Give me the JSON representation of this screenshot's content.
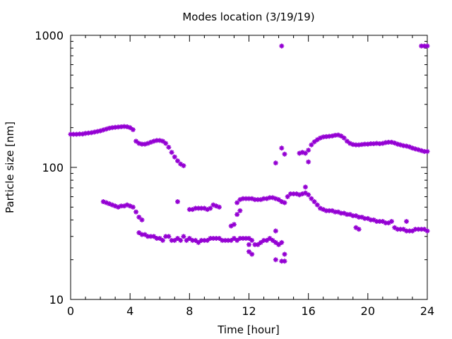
{
  "chart_data": {
    "type": "scatter",
    "title": "Modes location (3/19/19)",
    "xlabel": "Time [hour]",
    "ylabel": "Particle size [nm]",
    "xlim": [
      0,
      24
    ],
    "ylim": [
      10,
      1000
    ],
    "yscale": "log",
    "grid": false,
    "legend": "none",
    "marker_color": "#9400d3",
    "marker_shape": "star",
    "x_ticks": [
      0,
      4,
      8,
      12,
      16,
      20,
      24
    ],
    "x_tick_labels": [
      "0",
      "4",
      "8",
      "12",
      "16",
      "20",
      "24"
    ],
    "y_ticks": [
      10,
      100,
      1000
    ],
    "y_tick_labels": [
      "10",
      "100",
      "1000"
    ],
    "series": [
      {
        "values": [
          [
            0.0,
            178
          ],
          [
            0.2,
            178
          ],
          [
            0.4,
            178
          ],
          [
            0.6,
            179
          ],
          [
            0.8,
            179
          ],
          [
            1.0,
            181
          ],
          [
            1.2,
            182
          ],
          [
            1.4,
            183
          ],
          [
            1.6,
            185
          ],
          [
            1.8,
            187
          ],
          [
            2.0,
            189
          ],
          [
            2.2,
            192
          ],
          [
            2.4,
            195
          ],
          [
            2.6,
            198
          ],
          [
            2.8,
            200
          ],
          [
            3.0,
            201
          ],
          [
            3.2,
            202
          ],
          [
            3.4,
            203
          ],
          [
            3.6,
            204
          ],
          [
            3.8,
            203
          ],
          [
            4.0,
            200
          ],
          [
            4.2,
            193
          ],
          [
            4.4,
            158
          ],
          [
            4.6,
            152
          ],
          [
            4.8,
            150
          ],
          [
            5.0,
            150
          ],
          [
            5.2,
            152
          ],
          [
            5.4,
            155
          ],
          [
            5.6,
            158
          ],
          [
            5.8,
            160
          ],
          [
            6.0,
            160
          ],
          [
            6.2,
            158
          ],
          [
            6.4,
            152
          ],
          [
            6.6,
            142
          ],
          [
            6.8,
            130
          ],
          [
            7.0,
            120
          ],
          [
            7.2,
            112
          ],
          [
            7.4,
            106
          ],
          [
            7.6,
            103
          ],
          [
            14.2,
            140
          ],
          [
            14.4,
            126
          ],
          [
            15.4,
            128
          ],
          [
            15.6,
            130
          ],
          [
            15.8,
            128
          ],
          [
            16.0,
            110
          ],
          [
            16.0,
            135
          ],
          [
            16.2,
            148
          ],
          [
            16.4,
            156
          ],
          [
            16.6,
            162
          ],
          [
            16.8,
            167
          ],
          [
            17.0,
            170
          ],
          [
            17.2,
            171
          ],
          [
            17.4,
            172
          ],
          [
            17.6,
            173
          ],
          [
            17.8,
            175
          ],
          [
            18.0,
            176
          ],
          [
            18.2,
            173
          ],
          [
            18.4,
            167
          ],
          [
            18.6,
            158
          ],
          [
            18.8,
            152
          ],
          [
            19.0,
            149
          ],
          [
            19.2,
            148
          ],
          [
            19.4,
            148
          ],
          [
            19.6,
            149
          ],
          [
            19.8,
            150
          ],
          [
            20.0,
            150
          ],
          [
            20.2,
            151
          ],
          [
            20.4,
            151
          ],
          [
            20.6,
            152
          ],
          [
            20.8,
            151
          ],
          [
            21.0,
            152
          ],
          [
            21.2,
            154
          ],
          [
            21.4,
            155
          ],
          [
            21.6,
            155
          ],
          [
            21.8,
            153
          ],
          [
            22.0,
            150
          ],
          [
            22.2,
            148
          ],
          [
            22.4,
            146
          ],
          [
            22.6,
            145
          ],
          [
            22.8,
            143
          ],
          [
            23.0,
            140
          ],
          [
            23.2,
            138
          ],
          [
            23.4,
            136
          ],
          [
            23.6,
            134
          ],
          [
            23.8,
            132
          ],
          [
            24.0,
            132
          ],
          [
            14.2,
            830
          ],
          [
            23.6,
            830
          ],
          [
            23.8,
            830
          ],
          [
            24.0,
            830
          ],
          [
            13.8,
            108
          ]
        ]
      },
      {
        "values": [
          [
            2.2,
            55
          ],
          [
            2.4,
            54
          ],
          [
            2.6,
            53
          ],
          [
            2.8,
            52
          ],
          [
            3.0,
            51
          ],
          [
            3.2,
            50
          ],
          [
            3.4,
            51
          ],
          [
            3.6,
            51
          ],
          [
            3.8,
            52
          ],
          [
            4.0,
            51
          ],
          [
            4.2,
            50
          ],
          [
            4.4,
            46
          ],
          [
            4.6,
            42
          ],
          [
            4.8,
            40
          ],
          [
            7.2,
            55
          ],
          [
            8.0,
            48
          ],
          [
            8.2,
            48
          ],
          [
            8.4,
            49
          ],
          [
            8.6,
            49
          ],
          [
            8.8,
            49
          ],
          [
            9.0,
            49
          ],
          [
            9.2,
            48
          ],
          [
            9.4,
            49
          ],
          [
            9.6,
            52
          ],
          [
            9.8,
            51
          ],
          [
            10.0,
            50
          ],
          [
            10.8,
            36
          ],
          [
            11.0,
            37
          ],
          [
            11.2,
            44
          ],
          [
            11.4,
            47
          ],
          [
            11.2,
            54
          ],
          [
            11.4,
            57
          ],
          [
            11.6,
            58
          ],
          [
            11.8,
            58
          ],
          [
            12.0,
            58
          ],
          [
            12.2,
            58
          ],
          [
            12.4,
            57
          ],
          [
            12.6,
            57
          ],
          [
            12.8,
            57
          ],
          [
            13.0,
            58
          ],
          [
            13.2,
            58
          ],
          [
            13.4,
            59
          ],
          [
            13.6,
            59
          ],
          [
            13.8,
            58
          ],
          [
            14.0,
            57
          ],
          [
            14.2,
            55
          ],
          [
            14.4,
            54
          ],
          [
            14.6,
            60
          ],
          [
            14.8,
            63
          ],
          [
            15.0,
            63
          ],
          [
            15.2,
            63
          ],
          [
            15.4,
            62
          ],
          [
            15.6,
            63
          ],
          [
            15.8,
            71
          ],
          [
            15.8,
            64
          ],
          [
            16.0,
            62
          ],
          [
            16.2,
            58
          ],
          [
            16.4,
            55
          ],
          [
            16.6,
            52
          ],
          [
            16.8,
            49
          ],
          [
            17.0,
            48
          ],
          [
            17.2,
            47
          ],
          [
            17.4,
            47
          ],
          [
            17.6,
            47
          ],
          [
            17.8,
            46
          ],
          [
            18.0,
            46
          ],
          [
            18.2,
            45
          ],
          [
            18.4,
            45
          ],
          [
            18.6,
            44
          ],
          [
            18.8,
            44
          ],
          [
            19.0,
            43
          ],
          [
            19.2,
            43
          ],
          [
            19.4,
            42
          ],
          [
            19.6,
            42
          ],
          [
            19.8,
            41
          ],
          [
            20.0,
            41
          ],
          [
            20.2,
            40
          ],
          [
            20.4,
            40
          ],
          [
            20.6,
            39
          ],
          [
            20.8,
            39
          ],
          [
            21.0,
            39
          ],
          [
            21.2,
            38
          ],
          [
            21.4,
            38
          ],
          [
            21.6,
            39
          ],
          [
            21.8,
            35
          ],
          [
            22.0,
            34
          ],
          [
            22.2,
            34
          ],
          [
            22.4,
            34
          ],
          [
            22.6,
            33
          ],
          [
            22.8,
            33
          ],
          [
            23.0,
            33
          ],
          [
            23.2,
            34
          ],
          [
            23.4,
            34
          ],
          [
            23.6,
            34
          ],
          [
            23.8,
            34
          ],
          [
            24.0,
            33
          ],
          [
            22.6,
            39
          ],
          [
            19.2,
            35
          ],
          [
            19.4,
            34
          ]
        ]
      },
      {
        "values": [
          [
            4.6,
            32
          ],
          [
            4.8,
            31
          ],
          [
            5.0,
            31
          ],
          [
            5.2,
            30
          ],
          [
            5.4,
            30
          ],
          [
            5.6,
            30
          ],
          [
            5.8,
            29
          ],
          [
            6.0,
            29
          ],
          [
            6.2,
            28
          ],
          [
            6.4,
            30
          ],
          [
            6.6,
            30
          ],
          [
            6.8,
            28
          ],
          [
            7.0,
            28
          ],
          [
            7.2,
            29
          ],
          [
            7.4,
            28
          ],
          [
            7.6,
            30
          ],
          [
            7.8,
            28
          ],
          [
            8.0,
            29
          ],
          [
            8.2,
            28
          ],
          [
            8.4,
            28
          ],
          [
            8.6,
            27
          ],
          [
            8.8,
            28
          ],
          [
            9.0,
            28
          ],
          [
            9.2,
            28
          ],
          [
            9.4,
            29
          ],
          [
            9.6,
            29
          ],
          [
            9.8,
            29
          ],
          [
            10.0,
            29
          ],
          [
            10.2,
            28
          ],
          [
            10.4,
            28
          ],
          [
            10.6,
            28
          ],
          [
            10.8,
            28
          ],
          [
            11.0,
            29
          ],
          [
            11.2,
            28
          ],
          [
            11.4,
            29
          ],
          [
            11.6,
            29
          ],
          [
            11.8,
            29
          ],
          [
            12.0,
            29
          ],
          [
            12.2,
            28
          ],
          [
            12.0,
            23
          ],
          [
            12.2,
            22
          ],
          [
            12.0,
            26
          ],
          [
            12.4,
            26
          ],
          [
            12.6,
            26
          ],
          [
            12.8,
            27
          ],
          [
            13.0,
            28
          ],
          [
            13.2,
            28
          ],
          [
            13.4,
            29
          ],
          [
            13.6,
            28
          ],
          [
            13.8,
            27
          ],
          [
            14.0,
            26
          ],
          [
            14.2,
            27
          ],
          [
            13.8,
            33
          ],
          [
            14.4,
            22
          ],
          [
            13.8,
            20
          ],
          [
            14.2,
            19.5
          ],
          [
            14.4,
            19.5
          ]
        ]
      }
    ]
  }
}
